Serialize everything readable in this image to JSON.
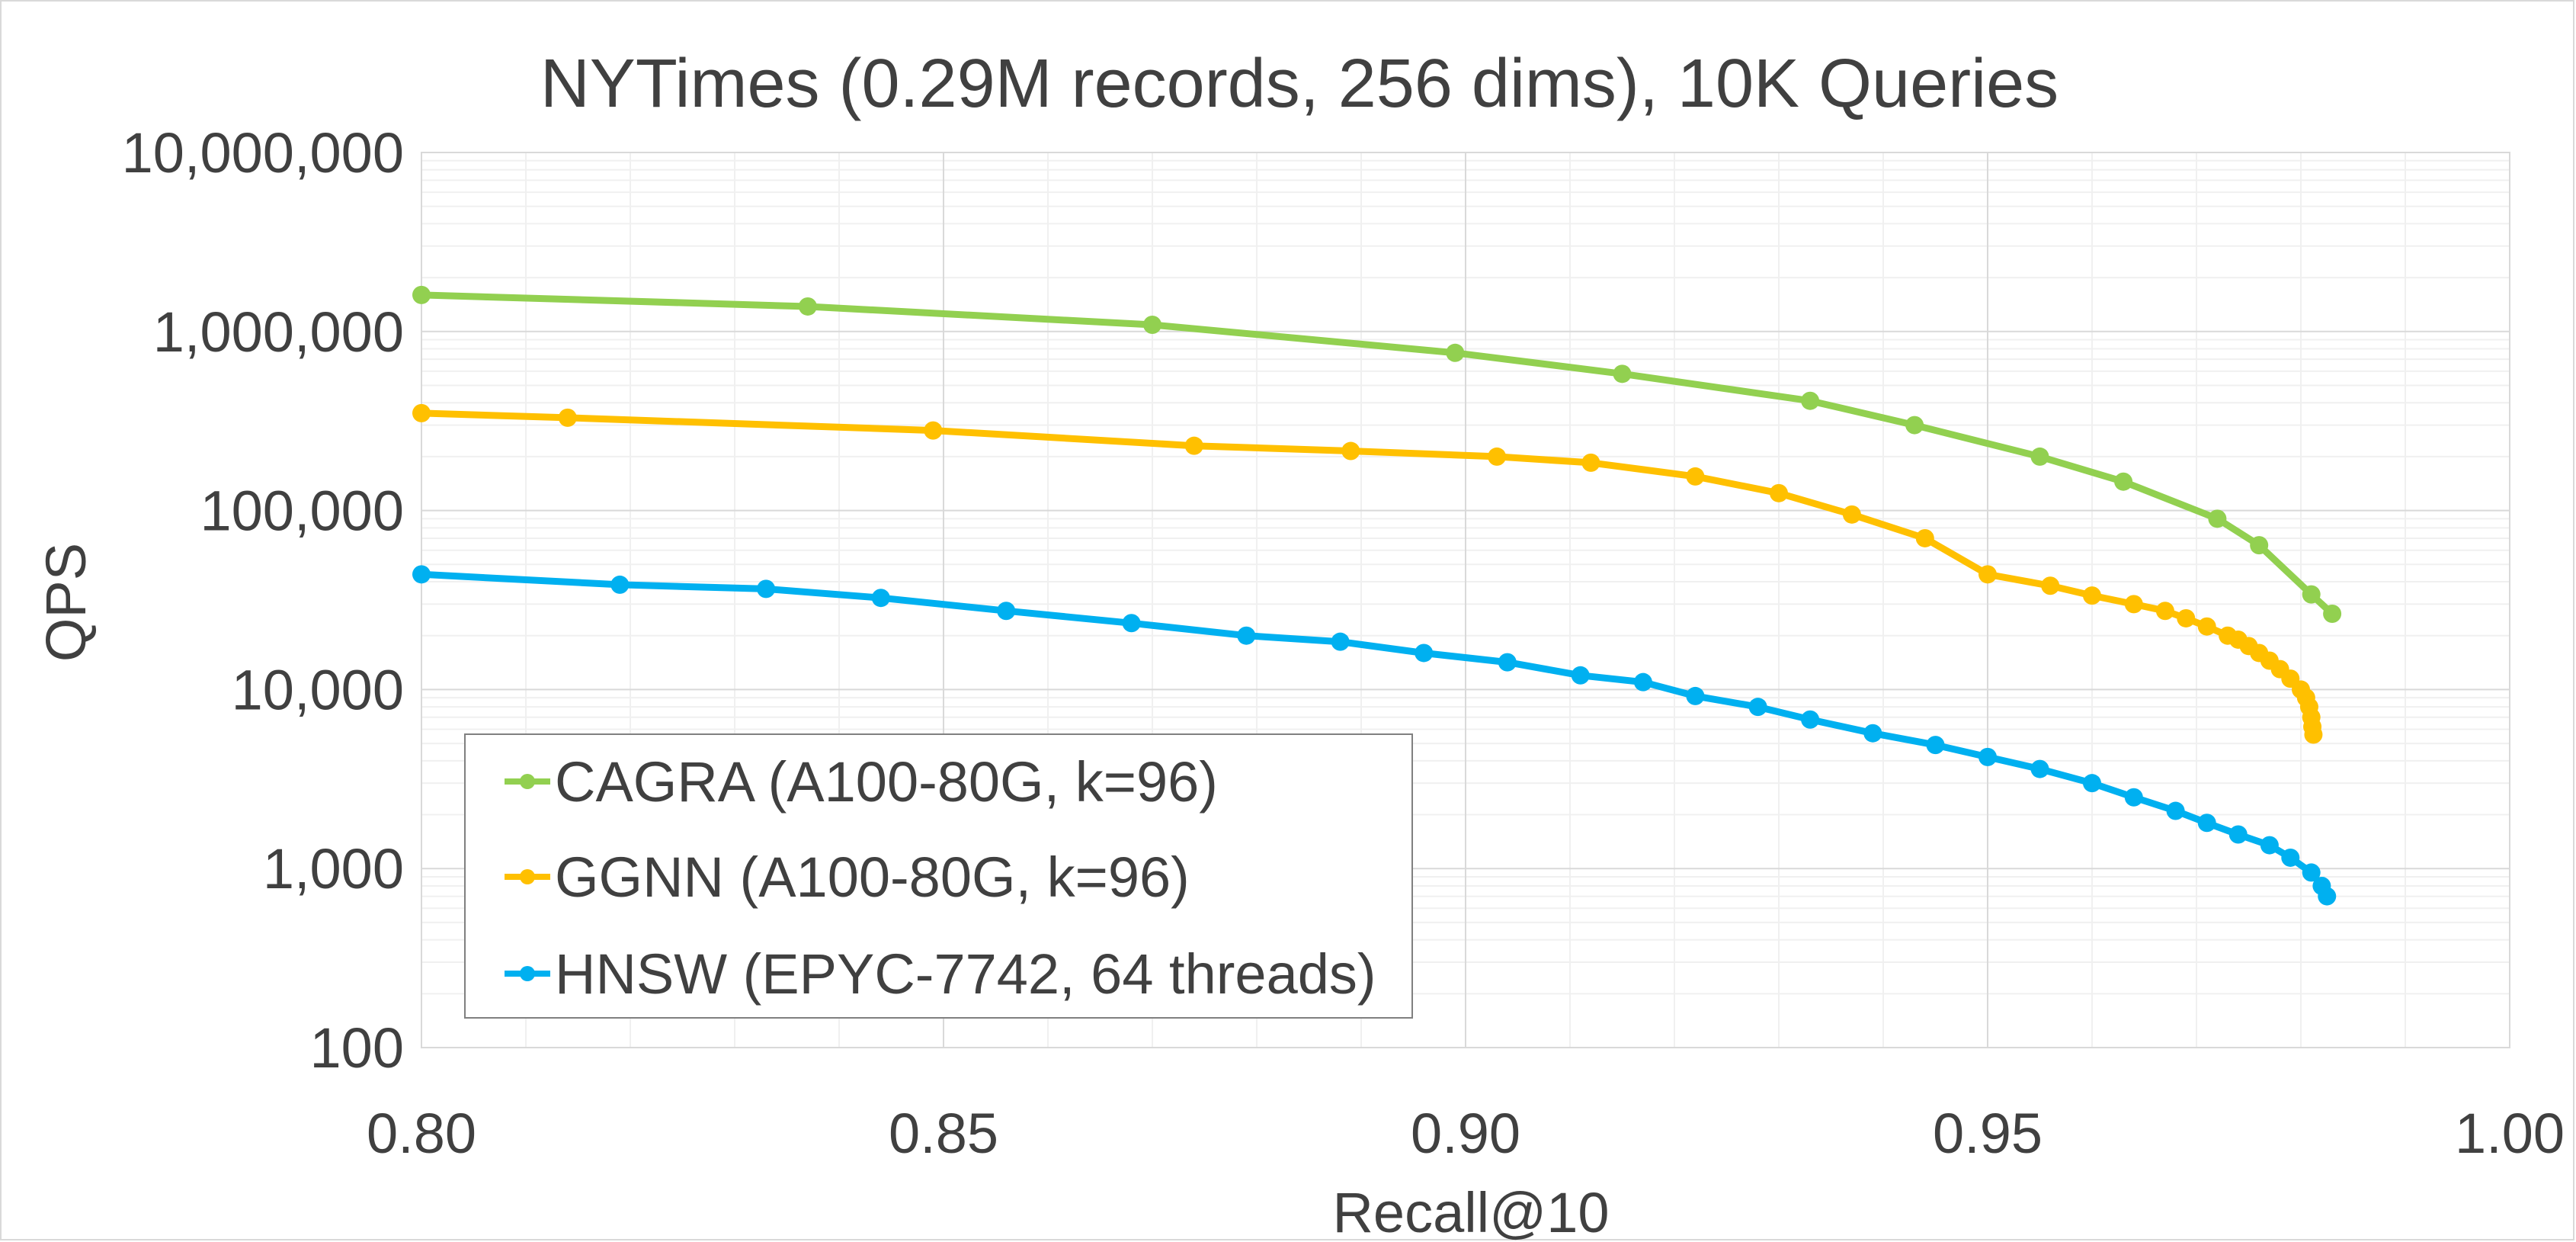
{
  "chart_data": {
    "type": "line",
    "title": "NYTimes (0.29M records, 256 dims), 10K Queries",
    "xlabel": "Recall@10",
    "ylabel": "QPS",
    "xlim": [
      0.8,
      1.0
    ],
    "ylim": [
      100,
      10000000
    ],
    "yscale": "log",
    "grid": true,
    "legend": "bottom-left",
    "x_ticks": [
      "0.80",
      "0.85",
      "0.90",
      "0.95",
      "1.00"
    ],
    "y_ticks": [
      "100",
      "1,000",
      "10,000",
      "100,000",
      "1,000,000",
      "10,000,000"
    ],
    "series": [
      {
        "name": "CAGRA (A100-80G, k=96)",
        "color": "#92d050",
        "points": [
          [
            0.8,
            1600000
          ],
          [
            0.837,
            1380000
          ],
          [
            0.87,
            1090000
          ],
          [
            0.899,
            760000
          ],
          [
            0.915,
            580000
          ],
          [
            0.933,
            410000
          ],
          [
            0.943,
            300000
          ],
          [
            0.955,
            200000
          ],
          [
            0.963,
            145000
          ],
          [
            0.972,
            90000
          ],
          [
            0.976,
            64000
          ],
          [
            0.981,
            34000
          ],
          [
            0.983,
            26500
          ]
        ]
      },
      {
        "name": "GGNN (A100-80G, k=96)",
        "color": "#ffc000",
        "points": [
          [
            0.8,
            350000
          ],
          [
            0.814,
            330000
          ],
          [
            0.849,
            280000
          ],
          [
            0.874,
            230000
          ],
          [
            0.889,
            215000
          ],
          [
            0.903,
            200000
          ],
          [
            0.912,
            185000
          ],
          [
            0.922,
            155000
          ],
          [
            0.93,
            125000
          ],
          [
            0.937,
            95000
          ],
          [
            0.944,
            70000
          ],
          [
            0.95,
            44000
          ],
          [
            0.956,
            38000
          ],
          [
            0.96,
            33500
          ],
          [
            0.964,
            30000
          ],
          [
            0.967,
            27500
          ],
          [
            0.969,
            25000
          ],
          [
            0.971,
            22500
          ],
          [
            0.973,
            20000
          ],
          [
            0.974,
            19000
          ],
          [
            0.975,
            17500
          ],
          [
            0.976,
            16000
          ],
          [
            0.977,
            14500
          ],
          [
            0.978,
            13000
          ],
          [
            0.979,
            11500
          ],
          [
            0.98,
            10000
          ],
          [
            0.9805,
            9000
          ],
          [
            0.9808,
            8000
          ],
          [
            0.981,
            7000
          ],
          [
            0.9811,
            6200
          ],
          [
            0.9812,
            5600
          ]
        ]
      },
      {
        "name": "HNSW (EPYC-7742, 64 threads)",
        "color": "#00b0f0",
        "points": [
          [
            0.8,
            44000
          ],
          [
            0.819,
            38500
          ],
          [
            0.833,
            36500
          ],
          [
            0.844,
            32500
          ],
          [
            0.856,
            27500
          ],
          [
            0.868,
            23500
          ],
          [
            0.879,
            20000
          ],
          [
            0.888,
            18500
          ],
          [
            0.896,
            16000
          ],
          [
            0.904,
            14200
          ],
          [
            0.911,
            12000
          ],
          [
            0.917,
            11000
          ],
          [
            0.922,
            9200
          ],
          [
            0.928,
            8000
          ],
          [
            0.933,
            6800
          ],
          [
            0.939,
            5700
          ],
          [
            0.945,
            4900
          ],
          [
            0.95,
            4200
          ],
          [
            0.955,
            3600
          ],
          [
            0.96,
            3000
          ],
          [
            0.964,
            2500
          ],
          [
            0.968,
            2100
          ],
          [
            0.971,
            1800
          ],
          [
            0.974,
            1550
          ],
          [
            0.977,
            1350
          ],
          [
            0.979,
            1150
          ],
          [
            0.981,
            950
          ],
          [
            0.982,
            800
          ],
          [
            0.9825,
            700
          ]
        ]
      }
    ]
  }
}
